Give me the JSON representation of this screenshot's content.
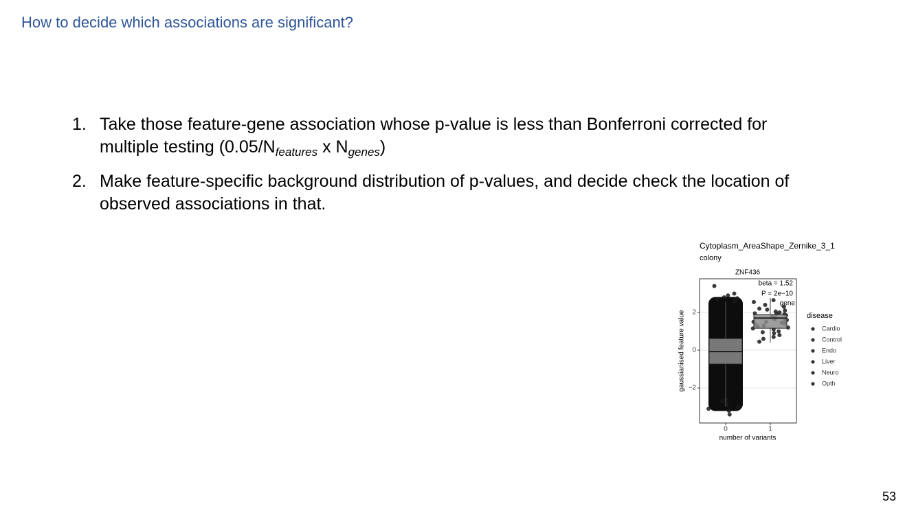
{
  "header": {
    "title": "How to decide which associations are significant?"
  },
  "list": [
    {
      "number": "1.",
      "parts": [
        "Take those feature-gene association whose p-value is less than Bonferroni corrected for multiple testing (0.05/N",
        "features",
        " x N",
        "genes",
        ")"
      ]
    },
    {
      "number": "2.",
      "parts": [
        "Make feature-specific background distribution of p-values, and decide check the location of observed associations in that."
      ]
    }
  ],
  "chart_data": {
    "type": "box",
    "title": "Cytoplasm_AreaShape_Zernike_3_1",
    "subtitle": "colony",
    "facet": "ZNF436",
    "annotations": [
      "beta = 1.52",
      "P = 2e−10",
      "gene"
    ],
    "x_label": "number of variants",
    "y_label": "gaussianised feature value",
    "categories": [
      "0",
      "1"
    ],
    "ylim": [
      -3.85,
      3.78
    ],
    "yticks": [
      {
        "value": -2,
        "label": "−2"
      },
      0,
      2
    ],
    "grid": true,
    "boxes": [
      {
        "q1": -0.73,
        "median": -0.07,
        "q3": 0.62,
        "whisker_low": -3.0,
        "whisker_high": 2.6
      },
      {
        "q1": 1.16,
        "median": 1.7,
        "q3": 1.89,
        "whisker_low": 0.4,
        "whisker_high": 2.6
      }
    ],
    "points": [
      [
        3.4,
        3.0,
        2.9,
        2.8,
        2.7,
        2.75,
        2.6,
        -2.6,
        -2.8,
        -2.9,
        -3.1,
        -3.2,
        -3.4,
        -2.7,
        -3.0
      ],
      [
        2.65,
        2.55,
        2.4,
        2.3,
        2.2,
        2.1,
        2.05,
        2.0,
        1.95,
        1.9,
        1.85,
        1.8,
        1.75,
        1.7,
        1.65,
        1.6,
        1.55,
        1.5,
        1.45,
        1.4,
        1.3,
        1.25,
        1.2,
        1.1,
        1.0,
        0.9,
        0.8,
        0.7,
        0.6,
        0.45,
        1.35,
        1.5,
        1.9,
        2.15,
        0.95,
        1.15
      ]
    ],
    "point_color": "#1a1a1a",
    "legend": {
      "title": "disease",
      "entries": [
        "Cardio",
        "Control",
        "Endo",
        "Liver",
        "Neuro",
        "Opth"
      ],
      "color": "#333333"
    }
  },
  "page_number": "53"
}
